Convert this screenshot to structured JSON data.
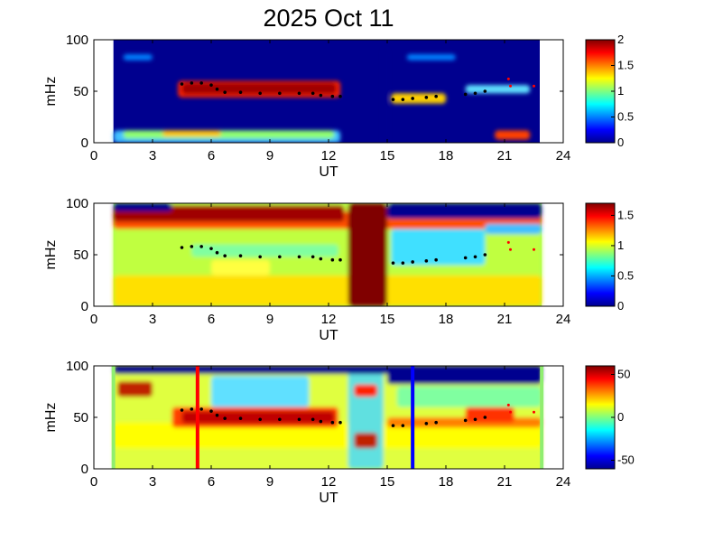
{
  "chart_data": {
    "type": "heatmap",
    "title": "2025 Oct 11",
    "panels": [
      {
        "xlabel": "UT",
        "ylabel": "mHz",
        "xlim": [
          0,
          24
        ],
        "ylim": [
          0,
          100
        ],
        "xticks": [
          "0",
          "3",
          "6",
          "9",
          "12",
          "15",
          "18",
          "21",
          "24"
        ],
        "yticks": [
          "0",
          "50",
          "100"
        ],
        "data_span_hours": [
          1.0,
          22.8
        ],
        "colorbar": {
          "range": [
            0,
            2
          ],
          "ticks": [
            "0",
            "0.5",
            "1",
            "1.5",
            "2"
          ]
        }
      },
      {
        "xlabel": "UT",
        "ylabel": "mHz",
        "xlim": [
          0,
          24
        ],
        "ylim": [
          0,
          100
        ],
        "xticks": [
          "0",
          "3",
          "6",
          "9",
          "12",
          "15",
          "18",
          "21",
          "24"
        ],
        "yticks": [
          "0",
          "50",
          "100"
        ],
        "data_span_hours": [
          1.0,
          22.9
        ],
        "colorbar": {
          "range": [
            0,
            1.7
          ],
          "ticks": [
            "0",
            "0.5",
            "1",
            "1.5"
          ]
        }
      },
      {
        "xlabel": "UT",
        "ylabel": "mHz",
        "xlim": [
          0,
          24
        ],
        "ylim": [
          0,
          100
        ],
        "xticks": [
          "0",
          "3",
          "6",
          "9",
          "12",
          "15",
          "18",
          "21",
          "24"
        ],
        "yticks": [
          "0",
          "50",
          "100"
        ],
        "data_span_hours": [
          1.0,
          22.9
        ],
        "colorbar": {
          "range": [
            -60,
            60
          ],
          "ticks": [
            "-50",
            "0",
            "50"
          ]
        },
        "markers": [
          {
            "color": "#ff0000",
            "hour": 5.3
          },
          {
            "color": "#0000ff",
            "hour": 16.3
          }
        ]
      }
    ],
    "ridge_points_mHz": [
      [
        4.5,
        57
      ],
      [
        5.0,
        58
      ],
      [
        5.5,
        58
      ],
      [
        6.0,
        56
      ],
      [
        6.3,
        52
      ],
      [
        6.7,
        49
      ],
      [
        7.5,
        49
      ],
      [
        8.5,
        48
      ],
      [
        9.5,
        48
      ],
      [
        10.5,
        48
      ],
      [
        11.2,
        48
      ],
      [
        11.6,
        46
      ],
      [
        12.2,
        45
      ],
      [
        12.6,
        45
      ],
      [
        15.3,
        42
      ],
      [
        15.8,
        42
      ],
      [
        16.3,
        43
      ],
      [
        17.0,
        44
      ],
      [
        17.5,
        45
      ],
      [
        19.0,
        47
      ],
      [
        19.5,
        48
      ],
      [
        20.0,
        50
      ]
    ],
    "red_points_mHz": [
      [
        21.2,
        62
      ],
      [
        21.3,
        55
      ],
      [
        22.5,
        55
      ]
    ]
  }
}
